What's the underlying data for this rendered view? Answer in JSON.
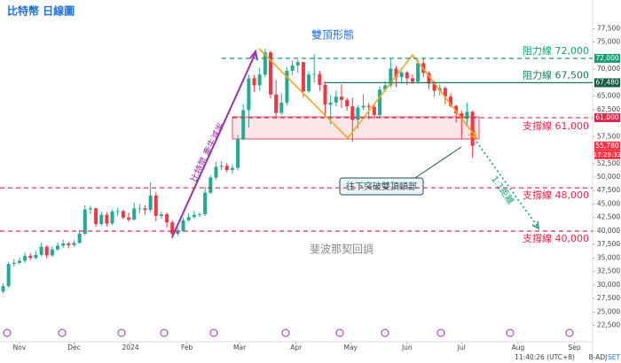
{
  "chart_data": {
    "type": "candlestick",
    "title": "比特幣 日線圖",
    "open": [
      28800,
      29800,
      33900,
      34100,
      34500,
      35400,
      35000,
      35600,
      37100,
      35500,
      36600,
      37300,
      37700,
      37400,
      37800,
      39500,
      44000,
      44200,
      41300,
      43000,
      41400,
      43600,
      43700,
      42500,
      42100,
      44200,
      44200,
      43900,
      46600,
      42800,
      43100,
      41600,
      39500,
      40000,
      42000,
      42600,
      43000,
      43100,
      47100,
      49900,
      51900,
      52100,
      51300,
      51700,
      57000,
      62400,
      68300,
      67000,
      69000,
      73100,
      65300,
      61900,
      63800,
      69700,
      70700,
      71300,
      65900,
      69000,
      69100,
      67100,
      63400,
      63800,
      64900,
      64300,
      63100,
      60600,
      62900,
      63200,
      63000,
      61500,
      66200,
      67000,
      70100,
      68500,
      69400,
      68300,
      67700,
      71100,
      69300,
      67300,
      66000,
      66500,
      64900,
      63200,
      61800,
      60800,
      62100
    ],
    "high": [
      30300,
      34300,
      34800,
      35100,
      36000,
      35900,
      36300,
      37800,
      37400,
      37100,
      37900,
      38400,
      38000,
      38300,
      40200,
      44800,
      44700,
      44400,
      43600,
      43500,
      44000,
      44300,
      43900,
      43400,
      45300,
      45000,
      44800,
      49000,
      47200,
      43600,
      43400,
      42000,
      40600,
      42500,
      43300,
      43800,
      43500,
      48200,
      50300,
      52800,
      52900,
      52600,
      52300,
      57800,
      63500,
      69000,
      68900,
      70200,
      73800,
      73400,
      68000,
      65500,
      70400,
      71600,
      71800,
      71400,
      69600,
      72800,
      69700,
      67500,
      65200,
      66000,
      67200,
      64700,
      64700,
      63300,
      65400,
      63800,
      63500,
      66800,
      67800,
      71900,
      70600,
      69700,
      69600,
      69000,
      71800,
      71900,
      69600,
      67800,
      67200,
      66800,
      65500,
      63400,
      62300,
      63800,
      62300
    ],
    "low": [
      28400,
      29500,
      33400,
      33800,
      34100,
      34600,
      34800,
      35300,
      34900,
      35200,
      36300,
      36900,
      36800,
      37100,
      37600,
      39200,
      43100,
      40800,
      41000,
      40800,
      41100,
      42800,
      42200,
      41700,
      42000,
      43300,
      43000,
      43500,
      41800,
      42300,
      40600,
      38600,
      39100,
      39800,
      41700,
      42300,
      42600,
      42800,
      46900,
      49500,
      51300,
      50800,
      50600,
      51200,
      56800,
      59200,
      65800,
      66000,
      68500,
      64600,
      60800,
      61500,
      63300,
      68900,
      69300,
      64800,
      65600,
      67500,
      66000,
      61300,
      59800,
      63100,
      62800,
      62300,
      56500,
      59000,
      62400,
      60700,
      60800,
      61100,
      65800,
      66600,
      66700,
      67300,
      67100,
      67200,
      67300,
      68500,
      66200,
      64900,
      65100,
      63500,
      62900,
      60100,
      57000,
      59500,
      53600
    ],
    "close": [
      29800,
      33900,
      34100,
      34500,
      35400,
      35000,
      35600,
      37100,
      35500,
      36600,
      37300,
      37700,
      37400,
      37800,
      39500,
      44000,
      44200,
      41300,
      43000,
      41400,
      43600,
      43700,
      42500,
      42100,
      44200,
      44200,
      43900,
      46600,
      42800,
      43100,
      41600,
      39500,
      40000,
      42000,
      42600,
      43000,
      43100,
      47100,
      49900,
      51900,
      52100,
      51300,
      51700,
      57000,
      62400,
      68300,
      67000,
      69000,
      73100,
      65300,
      61900,
      63800,
      69700,
      70700,
      71300,
      65900,
      69000,
      69100,
      67100,
      63400,
      63800,
      64900,
      64300,
      63100,
      60600,
      62900,
      63200,
      63000,
      61500,
      66200,
      67000,
      70100,
      68500,
      69400,
      68300,
      67700,
      71100,
      69300,
      67300,
      66000,
      66500,
      64900,
      63200,
      61800,
      60800,
      62100,
      55780
    ],
    "up_color": "#22ab94",
    "down_color": "#f23645",
    "xlim": [
      -0.57,
      108
    ],
    "xticks": [
      {
        "value": 3,
        "label": "Nov"
      },
      {
        "value": 13,
        "label": "Dec"
      },
      {
        "value": 23.33,
        "label": "2024"
      },
      {
        "value": 33.67,
        "label": "Feb"
      },
      {
        "value": 43.33,
        "label": "Mar"
      },
      {
        "value": 53.67,
        "label": "Apr"
      },
      {
        "value": 63.67,
        "label": "May"
      },
      {
        "value": 74,
        "label": "Jun"
      },
      {
        "value": 84,
        "label": "Jul"
      },
      {
        "value": 94.33,
        "label": "Aug"
      },
      {
        "value": 104.67,
        "label": "Sep"
      }
    ],
    "ylim": [
      20800,
      81500
    ],
    "yticks": [
      {
        "value": 22500,
        "label": "22,500"
      },
      {
        "value": 25000,
        "label": "25,000"
      },
      {
        "value": 27500,
        "label": "27,500"
      },
      {
        "value": 30000,
        "label": "30,000"
      },
      {
        "value": 32500,
        "label": "32,500"
      },
      {
        "value": 35000,
        "label": "35,000"
      },
      {
        "value": 37500,
        "label": "37,500"
      },
      {
        "value": 40000,
        "label": "40,000"
      },
      {
        "value": 42500,
        "label": "42,500"
      },
      {
        "value": 45000,
        "label": "45,000"
      },
      {
        "value": 47500,
        "label": "47,500"
      },
      {
        "value": 50000,
        "label": "50,000"
      },
      {
        "value": 52500,
        "label": "52,500"
      },
      {
        "value": 57500,
        "label": "57,500"
      },
      {
        "value": 62500,
        "label": "62,500"
      },
      {
        "value": 65000,
        "label": "65,000"
      },
      {
        "value": 70000,
        "label": "70,000"
      },
      {
        "value": 75000,
        "label": "75,000"
      },
      {
        "value": 77500,
        "label": "77,500"
      }
    ],
    "levels": [
      {
        "label": "阻力線 72,000",
        "value": 72000,
        "color": "#1a9e6e",
        "style": "dashed"
      },
      {
        "label": "阻力線 67,500",
        "value": 67500,
        "color": "#1a7a5a",
        "style": "solid"
      },
      {
        "label": "支撐線 61,000",
        "value": 61000,
        "color": "#e0284a",
        "style": "dashed"
      },
      {
        "label": "支撐線 48,000",
        "value": 48000,
        "color": "#e0284a",
        "style": "dashed"
      },
      {
        "label": "支撐線 40,000",
        "value": 40000,
        "color": "#e0284a",
        "style": "dashed"
      }
    ],
    "price_tags": [
      {
        "value": 72000,
        "label": "72,000",
        "color": "#1a9e6e"
      },
      {
        "value": 67480,
        "label": "67,480",
        "color": "#145c45"
      },
      {
        "value": 61000,
        "label": "61,000",
        "color": "#e0284a"
      },
      {
        "value": 55780,
        "label": "55,780",
        "color": "#f23645"
      }
    ],
    "countdown": "17:29:33",
    "annotations": {
      "pattern": "雙頂形態",
      "breakout": "往下突破雙頂頸部",
      "halving": "比特幣 牽牛減半",
      "measure": "1:1距離",
      "fib": "斐波那契回調"
    },
    "footer": {
      "time": "11:40:26 (UTC+8)",
      "adj": "B-ADJ",
      "set": "SET"
    }
  }
}
